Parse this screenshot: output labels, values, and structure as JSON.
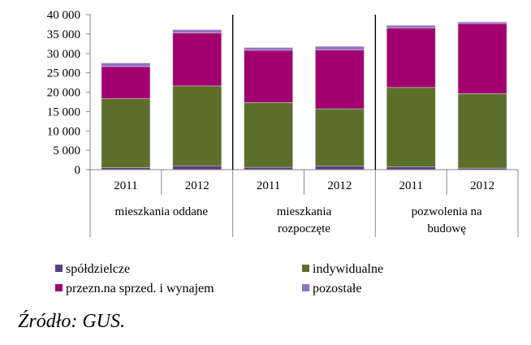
{
  "chart_data": {
    "type": "bar",
    "stacked": true,
    "groups": [
      {
        "label": "mieszkania oddane",
        "categories": [
          "2011",
          "2012"
        ]
      },
      {
        "label": "mieszkania rozpoczęte",
        "categories": [
          "2011",
          "2012"
        ]
      },
      {
        "label": "pozwolenia na budowę",
        "categories": [
          "2011",
          "2012"
        ]
      }
    ],
    "categories": [
      "2011",
      "2012",
      "2011",
      "2012",
      "2011",
      "2012"
    ],
    "series": [
      {
        "name": "spółdzielcze",
        "color": "#5a3d84",
        "values": [
          500,
          1000,
          600,
          900,
          700,
          400
        ]
      },
      {
        "name": "indywidualne",
        "color": "#5b6f2a",
        "values": [
          17800,
          20600,
          16700,
          14800,
          20500,
          19200
        ]
      },
      {
        "name": "przezn.na sprzed. i wynajem",
        "color": "#a3006f",
        "values": [
          8300,
          13700,
          13500,
          15200,
          15300,
          18100
        ]
      },
      {
        "name": "pozostałe",
        "color": "#9370c8",
        "values": [
          900,
          800,
          700,
          900,
          700,
          400
        ]
      }
    ],
    "y_ticks": [
      "0",
      "5 000",
      "10 000",
      "15 000",
      "20 000",
      "25 000",
      "30 000",
      "35 000",
      "40 000"
    ],
    "ylim": [
      0,
      40000
    ],
    "grid": false,
    "legend_position": "bottom"
  },
  "source_label": "Źródło: GUS."
}
